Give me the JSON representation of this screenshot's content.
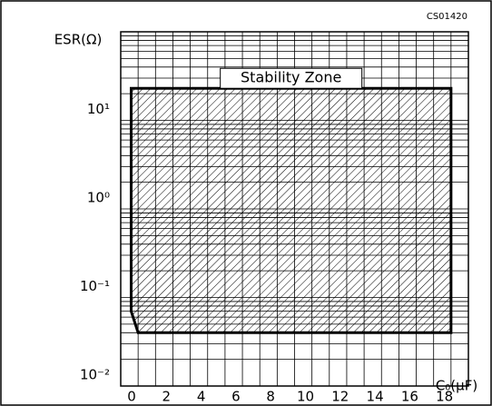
{
  "chart_data": {
    "type": "area",
    "code": "CS01420",
    "y_label": "ESR(Ω)",
    "x_label": "C₀(μF)",
    "xlim": [
      0,
      20
    ],
    "xticks": [
      0,
      2,
      4,
      6,
      8,
      10,
      12,
      14,
      16,
      18
    ],
    "xgrid": [
      1,
      2,
      3,
      4,
      5,
      6,
      7,
      8,
      9,
      10,
      11,
      12,
      13,
      14,
      15,
      16,
      17,
      18,
      19
    ],
    "ylim": [
      0.01,
      100
    ],
    "log_y": true,
    "yticks": [
      {
        "value": 0.01,
        "label": "10⁻²"
      },
      {
        "value": 0.1,
        "label": "10⁻¹"
      },
      {
        "value": 1,
        "label": "10⁰"
      },
      {
        "value": 10,
        "label": "10¹"
      }
    ],
    "ygrid": [
      0.02,
      0.03,
      0.04,
      0.05,
      0.06,
      0.07,
      0.08,
      0.09,
      0.1,
      0.2,
      0.3,
      0.4,
      0.5,
      0.6,
      0.7,
      0.8,
      0.9,
      1,
      2,
      3,
      4,
      5,
      6,
      7,
      8,
      9,
      10,
      20,
      30,
      40,
      50,
      60,
      70,
      80,
      90
    ],
    "zone": {
      "label": "Stability Zone",
      "x": [
        0.6,
        19,
        19,
        1,
        0.6
      ],
      "y": [
        23,
        23,
        0.04,
        0.04,
        0.07
      ]
    },
    "grid": true,
    "color": "#000000"
  }
}
